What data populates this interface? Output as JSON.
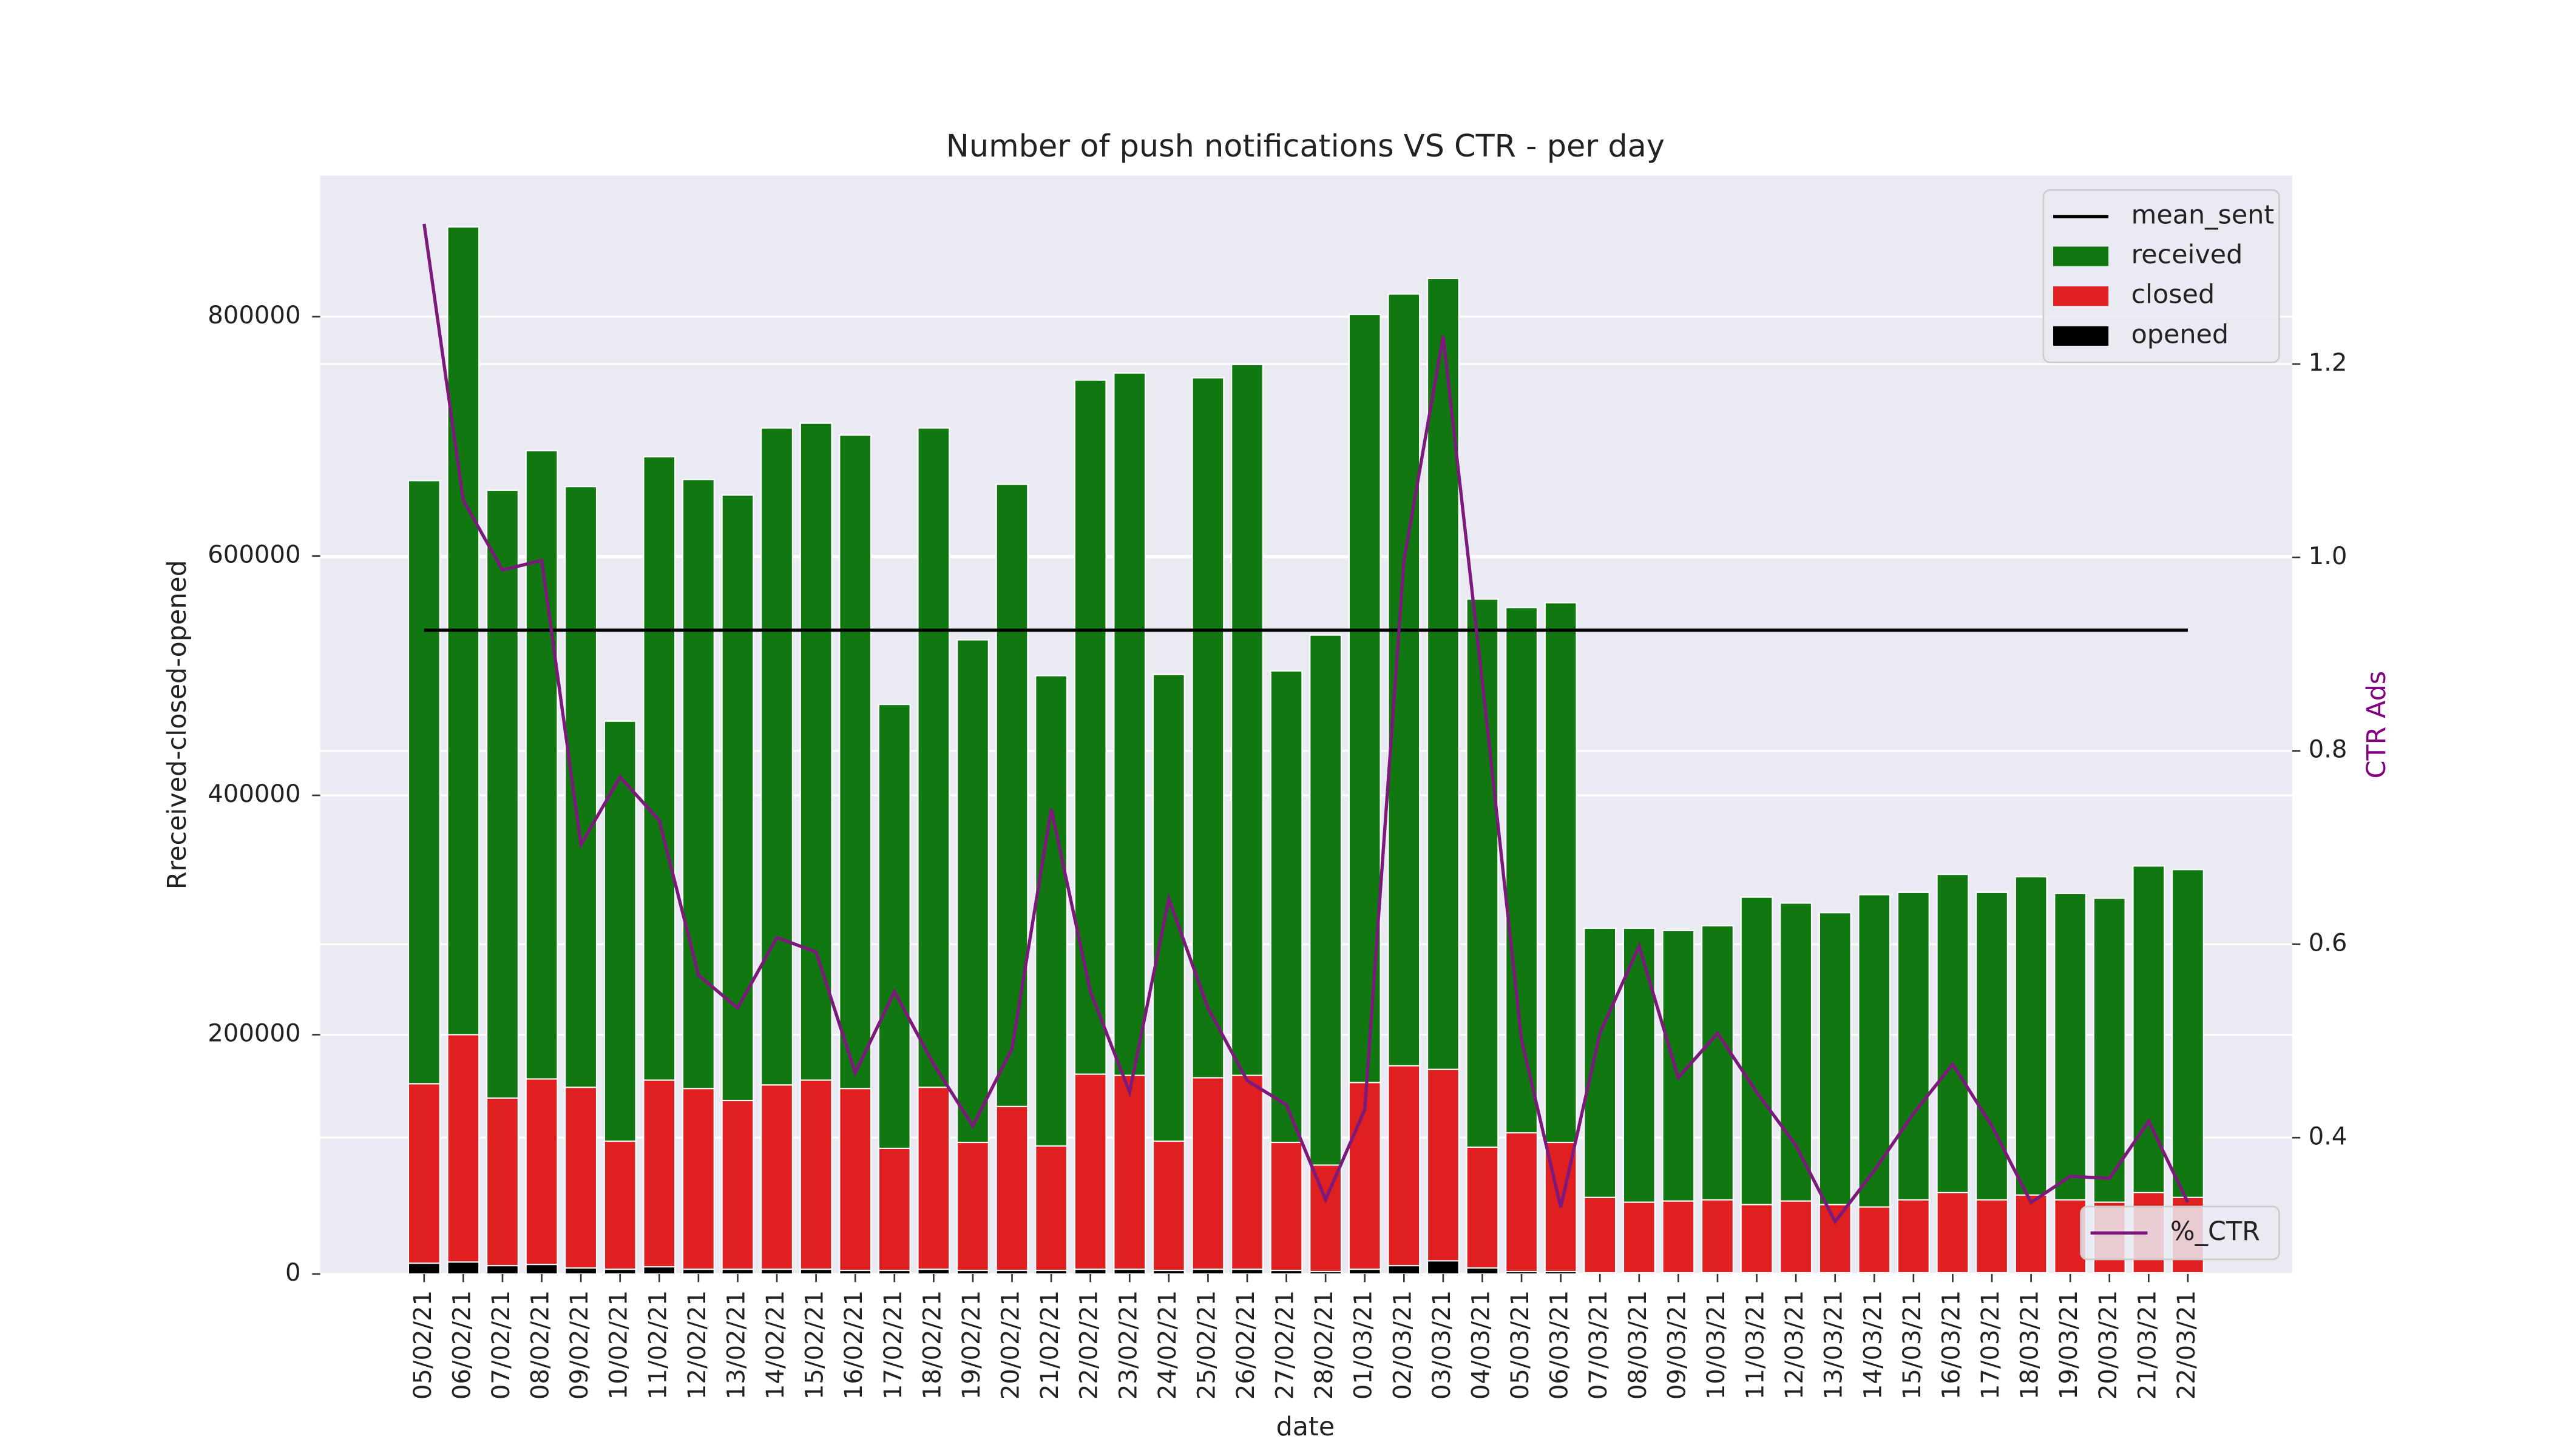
{
  "chart_data": {
    "type": "bar",
    "title": "Number of push notifications VS CTR - per day",
    "xlabel": "date",
    "ylabel": "Rreceived-closed-opened",
    "y2label": "CTR Ads",
    "categories": [
      "05/02/21",
      "06/02/21",
      "07/02/21",
      "08/02/21",
      "09/02/21",
      "10/02/21",
      "11/02/21",
      "12/02/21",
      "13/02/21",
      "14/02/21",
      "15/02/21",
      "16/02/21",
      "17/02/21",
      "18/02/21",
      "19/02/21",
      "20/02/21",
      "21/02/21",
      "22/02/21",
      "23/02/21",
      "24/02/21",
      "25/02/21",
      "26/02/21",
      "27/02/21",
      "28/02/21",
      "01/03/21",
      "02/03/21",
      "03/03/21",
      "04/03/21",
      "05/03/21",
      "06/03/21",
      "07/03/21",
      "08/03/21",
      "09/03/21",
      "10/03/21",
      "11/03/21",
      "12/03/21",
      "13/03/21",
      "14/03/21",
      "15/03/21",
      "16/03/21",
      "17/03/21",
      "18/03/21",
      "19/03/21",
      "20/03/21",
      "21/03/21",
      "22/03/21"
    ],
    "series": [
      {
        "name": "received",
        "color": "#117711",
        "values": [
          663000,
          875000,
          655000,
          688000,
          658000,
          462000,
          683000,
          664000,
          651000,
          707000,
          711000,
          701000,
          476000,
          707000,
          530000,
          660000,
          500000,
          747000,
          753000,
          501000,
          749000,
          760000,
          504000,
          534000,
          802000,
          819000,
          832000,
          564000,
          557000,
          561000,
          289000,
          289000,
          287000,
          291000,
          315000,
          310000,
          302000,
          317000,
          319000,
          334000,
          319000,
          332000,
          318000,
          314000,
          341000,
          338000
        ]
      },
      {
        "name": "closed",
        "color": "#e02020",
        "values": [
          159000,
          200000,
          147000,
          163000,
          156000,
          111000,
          162000,
          155000,
          145000,
          158000,
          162000,
          155000,
          105000,
          156000,
          110000,
          140000,
          107000,
          167000,
          166000,
          111000,
          164000,
          166000,
          110000,
          91000,
          160000,
          174000,
          171000,
          106000,
          118000,
          110000,
          64000,
          60000,
          61000,
          62000,
          58000,
          61000,
          58000,
          56000,
          62000,
          68000,
          62000,
          66000,
          62000,
          60000,
          68000,
          64000
        ]
      },
      {
        "name": "opened",
        "color": "#000000",
        "values": [
          9000,
          10000,
          7000,
          8000,
          5000,
          4000,
          6000,
          4000,
          4000,
          4000,
          4000,
          3000,
          3000,
          4000,
          3000,
          3000,
          3000,
          4000,
          4000,
          3000,
          4000,
          4000,
          3000,
          2000,
          4000,
          7000,
          11000,
          5000,
          2000,
          2000,
          1000,
          1000,
          1000,
          1000,
          1000,
          1000,
          1000,
          1000,
          1000,
          1000,
          1000,
          1000,
          1000,
          1000,
          1000,
          1000
        ]
      },
      {
        "name": "%_CTR",
        "type": "line",
        "axis": "y2",
        "color": "#7b1a7b",
        "values": [
          1.345,
          1.059,
          0.987,
          0.997,
          0.703,
          0.773,
          0.728,
          0.568,
          0.534,
          0.607,
          0.592,
          0.467,
          0.551,
          0.476,
          0.412,
          0.492,
          0.74,
          0.551,
          0.447,
          0.647,
          0.534,
          0.459,
          0.434,
          0.336,
          0.429,
          0.997,
          1.229,
          0.871,
          0.501,
          0.328,
          0.508,
          0.598,
          0.462,
          0.508,
          0.447,
          0.392,
          0.313,
          0.366,
          0.425,
          0.476,
          0.412,
          0.333,
          0.36,
          0.358,
          0.417,
          0.333
        ]
      }
    ],
    "mean_line": {
      "name": "mean_sent",
      "value": 538000,
      "color": "#000000"
    },
    "ylim": [
      0,
      918000
    ],
    "yticks": [
      0,
      200000,
      400000,
      600000,
      800000
    ],
    "y2lim": [
      0.259,
      1.395
    ],
    "y2ticks": [
      0.4,
      0.6,
      0.8,
      {
        "value": 1,
        "label": "1.0"
      },
      1.2
    ],
    "grid": true,
    "legend": "upper right",
    "y2_legend": "lower right"
  }
}
